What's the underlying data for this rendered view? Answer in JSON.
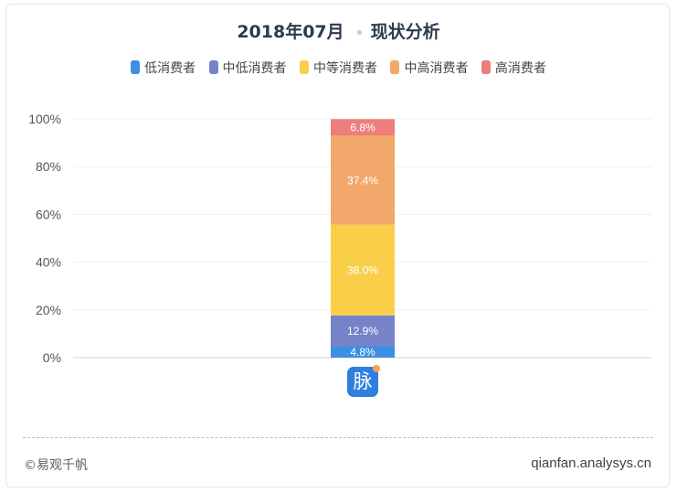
{
  "title": {
    "date": "2018年07月",
    "name": "现状分析"
  },
  "legend": [
    {
      "label": "低消费者",
      "color": "#3d8fe0"
    },
    {
      "label": "中低消费者",
      "color": "#7683c8"
    },
    {
      "label": "中等消费者",
      "color": "#f9cf4a"
    },
    {
      "label": "中高消费者",
      "color": "#f2a86a"
    },
    {
      "label": "高消费者",
      "color": "#ee7d7d"
    }
  ],
  "chart_data": {
    "type": "bar",
    "stacked": true,
    "ylim": [
      0,
      100
    ],
    "yticks": [
      "0%",
      "20%",
      "40%",
      "60%",
      "80%",
      "100%"
    ],
    "series": [
      {
        "name": "低消费者",
        "value": 4.8,
        "label": "4.8%",
        "color": "#3d8fe0"
      },
      {
        "name": "中低消费者",
        "value": 12.9,
        "label": "12.9%",
        "color": "#7683c8"
      },
      {
        "name": "中等消费者",
        "value": 38.0,
        "label": "38.0%",
        "color": "#f9cf4a"
      },
      {
        "name": "中高消费者",
        "value": 37.4,
        "label": "37.4%",
        "color": "#f2a86a"
      },
      {
        "name": "高消费者",
        "value": 6.8,
        "label": "6.8%",
        "color": "#ee7d7d"
      }
    ],
    "grid": true
  },
  "category_icon": {
    "text": "脉"
  },
  "footer": {
    "left": "©易观千帆",
    "right": "qianfan.analysys.cn"
  }
}
